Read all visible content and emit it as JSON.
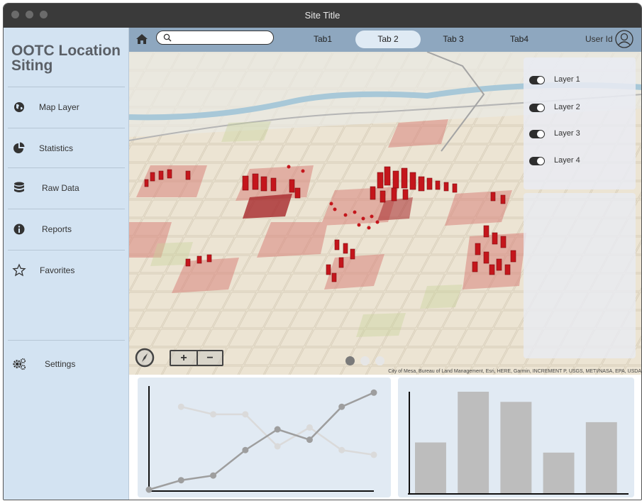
{
  "window": {
    "title": "Site Title"
  },
  "app": {
    "name_line1": "OOTC Location",
    "name_line2": "Siting"
  },
  "sidebar": {
    "items": [
      {
        "label": "Map Layer",
        "icon": "globe-icon"
      },
      {
        "label": "Statistics",
        "icon": "pie-chart-icon"
      },
      {
        "label": "Raw Data",
        "icon": "database-icon"
      },
      {
        "label": "Reports",
        "icon": "info-icon"
      },
      {
        "label": "Favorites",
        "icon": "star-icon"
      }
    ],
    "settings": {
      "label": "Settings",
      "icon": "gears-icon"
    }
  },
  "topbar": {
    "search": {
      "placeholder": "",
      "value": ""
    },
    "tabs": [
      {
        "label": "Tab1",
        "active": false
      },
      {
        "label": "Tab 2",
        "active": true
      },
      {
        "label": "Tab 3",
        "active": false
      },
      {
        "label": "Tab4",
        "active": false
      }
    ],
    "user_id": "User Id"
  },
  "map": {
    "layers": [
      {
        "label": "Layer 1",
        "on": true
      },
      {
        "label": "Layer 2",
        "on": true
      },
      {
        "label": "Layer 3",
        "on": true
      },
      {
        "label": "Layer 4",
        "on": true
      }
    ],
    "zoom_in": "+",
    "zoom_out": "−",
    "carousel": {
      "pages": 3,
      "active_index": 0
    },
    "attribution": "City of Mesa, Bureau of Land Management, Esri, HERE, Garmin, INCREMENT P, USGS, METI/NASA, EPA, USDA"
  },
  "colors": {
    "sidebar_bg": "#d3e3f2",
    "topbar_bg": "#8ea7bf",
    "chart_bg": "#e1eaf3",
    "pin": "#c4161c",
    "series_dark": "#9e9e9e",
    "series_light": "#dadada",
    "bar": "#bdbdbd"
  },
  "chart_data": [
    {
      "type": "line",
      "x": [
        0,
        1,
        2,
        3,
        4,
        5,
        6,
        7
      ],
      "series": [
        {
          "values": [
            0,
            10,
            15,
            42,
            64,
            53,
            88,
            103
          ]
        },
        {
          "values": [
            null,
            88,
            80,
            80,
            46,
            66,
            42,
            37
          ]
        }
      ],
      "ylim": [
        0,
        110
      ],
      "grid": false
    },
    {
      "type": "bar",
      "categories": [
        "",
        "",
        "",
        "",
        ""
      ],
      "values": [
        50,
        100,
        90,
        40,
        70
      ],
      "ylim": [
        0,
        100
      ],
      "grid": false
    }
  ]
}
